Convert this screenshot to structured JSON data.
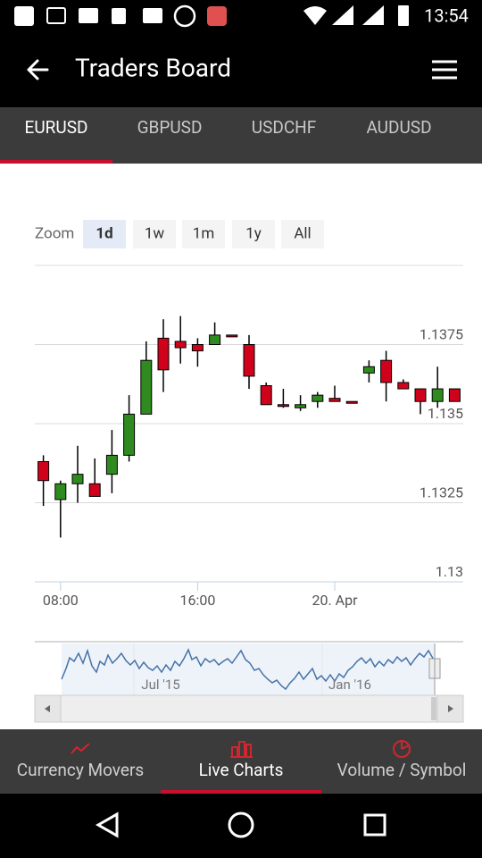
{
  "status_bar": {
    "time": "13:54"
  },
  "app_bar": {
    "title": "Traders Board"
  },
  "tabs": {
    "items": [
      "EURUSD",
      "GBPUSD",
      "USDCHF",
      "AUDUSD"
    ],
    "active": 0
  },
  "zoom": {
    "label": "Zoom",
    "options": [
      "1d",
      "1w",
      "1m",
      "1y",
      "All"
    ],
    "active": 0
  },
  "chart_data": {
    "type": "candlestick",
    "categories": [
      null,
      "08:00",
      null,
      null,
      null,
      null,
      null,
      null,
      null,
      "16:00",
      null,
      null,
      null,
      null,
      null,
      null,
      null,
      "20. Apr",
      null,
      null,
      null,
      null,
      null,
      null,
      null
    ],
    "open": [
      1.1338,
      1.1326,
      1.1331,
      1.1331,
      1.1334,
      1.134,
      1.1353,
      1.1377,
      1.1376,
      1.1375,
      1.1375,
      1.1378,
      1.1375,
      1.1362,
      1.1356,
      1.1355,
      1.1357,
      1.1358,
      1.1357,
      1.1366,
      1.137,
      1.1363,
      1.1361,
      1.1357,
      1.1361
    ],
    "high": [
      1.134,
      1.1332,
      1.1343,
      1.1339,
      1.1348,
      1.1359,
      1.1376,
      1.1383,
      1.1384,
      1.1377,
      1.1382,
      1.1378,
      1.1378,
      1.1363,
      1.1361,
      1.1359,
      1.136,
      1.1362,
      1.1357,
      1.137,
      1.1373,
      1.1364,
      1.1361,
      1.1368,
      1.1361
    ],
    "low": [
      1.1324,
      1.1314,
      1.1325,
      1.1327,
      1.1328,
      1.1338,
      1.1353,
      1.136,
      1.1369,
      1.1368,
      1.1375,
      1.1378,
      1.1361,
      1.1356,
      1.1355,
      1.1354,
      1.1355,
      1.1357,
      1.1357,
      1.1363,
      1.1357,
      1.1361,
      1.1353,
      1.1355,
      1.1357
    ],
    "close": [
      1.1332,
      1.1331,
      1.1334,
      1.1327,
      1.134,
      1.1353,
      1.137,
      1.1367,
      1.1374,
      1.1373,
      1.1378,
      1.1378,
      1.1365,
      1.1356,
      1.1356,
      1.1356,
      1.1359,
      1.1357,
      1.1357,
      1.1368,
      1.1363,
      1.1361,
      1.1357,
      1.1361,
      1.1357
    ],
    "up_color": "#2f8a1f",
    "down_color": "#d0021b",
    "ylim": [
      1.13,
      1.14
    ],
    "yticks": [
      1.13,
      1.1325,
      1.135,
      1.1375
    ],
    "grid": true
  },
  "navigator": {
    "labels": [
      "Jul '15",
      "Jan '16"
    ]
  },
  "bottom_nav": {
    "items": [
      "Currency Movers",
      "Live Charts",
      "Volume / Symbol"
    ],
    "active": 1
  }
}
